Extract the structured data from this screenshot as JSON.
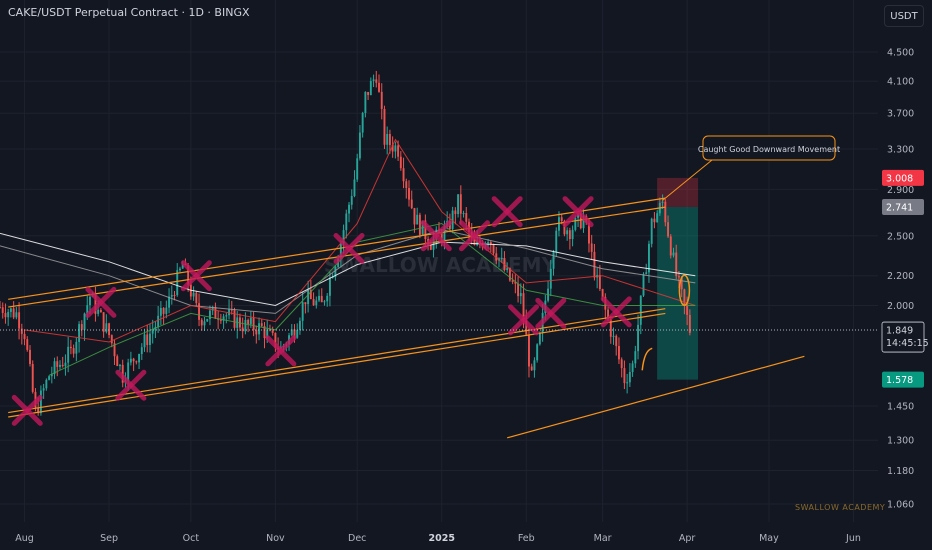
{
  "header": {
    "title": "CAKE/USDT Perpetual Contract · 1D · BINGX",
    "currency_button": "USDT"
  },
  "colors": {
    "background": "#131722",
    "up": "#26a69a",
    "down": "#ef5350",
    "channel": "#f7931a",
    "marker": "#c2185b",
    "target_zone": "#089981",
    "stop_zone": "#f23645",
    "ma_white": "#ffffff",
    "ma_grey": "#9e9e9e",
    "ma_red": "#e53935",
    "ma_green": "#43a047"
  },
  "chart_data": {
    "type": "candlestick",
    "y_scale": "log",
    "ylim": [
      1.0,
      4.9
    ],
    "y_ticks": [
      {
        "label": "4.500",
        "value": 4.5
      },
      {
        "label": "4.100",
        "value": 4.1
      },
      {
        "label": "3.700",
        "value": 3.7
      },
      {
        "label": "3.300",
        "value": 3.3
      },
      {
        "label": "2.900",
        "value": 2.9
      },
      {
        "label": "2.500",
        "value": 2.5
      },
      {
        "label": "2.200",
        "value": 2.2
      },
      {
        "label": "2.000",
        "value": 2.0
      },
      {
        "label": "1.450",
        "value": 1.45
      },
      {
        "label": "1.300",
        "value": 1.3
      },
      {
        "label": "1.180",
        "value": 1.18
      },
      {
        "label": "1.060",
        "value": 1.06
      }
    ],
    "x_range": [
      "2024-07-23",
      "2025-06-10"
    ],
    "x_ticks": [
      {
        "label": "Aug",
        "date": "2024-08-01"
      },
      {
        "label": "Sep",
        "date": "2024-09-01"
      },
      {
        "label": "Oct",
        "date": "2024-10-01"
      },
      {
        "label": "Nov",
        "date": "2024-11-01"
      },
      {
        "label": "Dec",
        "date": "2024-12-01"
      },
      {
        "label": "2025",
        "date": "2025-01-01"
      },
      {
        "label": "Feb",
        "date": "2025-02-01"
      },
      {
        "label": "Mar",
        "date": "2025-03-01"
      },
      {
        "label": "Apr",
        "date": "2025-04-01"
      },
      {
        "label": "May",
        "date": "2025-05-01"
      },
      {
        "label": "Jun",
        "date": "2025-06-01"
      }
    ],
    "close_keypoints": [
      [
        "2024-07-23",
        1.99
      ],
      [
        "2024-07-29",
        1.95
      ],
      [
        "2024-08-01",
        1.83
      ],
      [
        "2024-08-05",
        1.42
      ],
      [
        "2024-08-10",
        1.6
      ],
      [
        "2024-08-18",
        1.72
      ],
      [
        "2024-08-25",
        2.06
      ],
      [
        "2024-09-01",
        1.82
      ],
      [
        "2024-09-06",
        1.6
      ],
      [
        "2024-09-14",
        1.78
      ],
      [
        "2024-09-22",
        1.98
      ],
      [
        "2024-09-28",
        2.28
      ],
      [
        "2024-10-04",
        1.92
      ],
      [
        "2024-10-12",
        1.96
      ],
      [
        "2024-10-20",
        1.88
      ],
      [
        "2024-10-27",
        1.86
      ],
      [
        "2024-11-03",
        1.74
      ],
      [
        "2024-11-08",
        1.86
      ],
      [
        "2024-11-12",
        2.05
      ],
      [
        "2024-11-18",
        2.0
      ],
      [
        "2024-11-25",
        2.45
      ],
      [
        "2024-11-30",
        3.0
      ],
      [
        "2024-12-04",
        3.9
      ],
      [
        "2024-12-08",
        4.2
      ],
      [
        "2024-12-11",
        3.4
      ],
      [
        "2024-12-16",
        3.3
      ],
      [
        "2024-12-22",
        2.65
      ],
      [
        "2024-12-28",
        2.45
      ],
      [
        "2025-01-03",
        2.55
      ],
      [
        "2025-01-07",
        2.78
      ],
      [
        "2025-01-13",
        2.4
      ],
      [
        "2025-01-18",
        2.5
      ],
      [
        "2025-01-25",
        2.2
      ],
      [
        "2025-01-30",
        2.05
      ],
      [
        "2025-02-03",
        1.58
      ],
      [
        "2025-02-06",
        1.8
      ],
      [
        "2025-02-12",
        2.6
      ],
      [
        "2025-02-17",
        2.55
      ],
      [
        "2025-02-22",
        2.65
      ],
      [
        "2025-02-27",
        2.15
      ],
      [
        "2025-03-04",
        1.85
      ],
      [
        "2025-03-09",
        1.58
      ],
      [
        "2025-03-12",
        1.65
      ],
      [
        "2025-03-16",
        2.15
      ],
      [
        "2025-03-19",
        2.6
      ],
      [
        "2025-03-23",
        2.78
      ],
      [
        "2025-03-28",
        2.2
      ],
      [
        "2025-04-01",
        1.92
      ],
      [
        "2025-04-02",
        1.849
      ]
    ],
    "moving_averages": [
      {
        "color": "#ffffff",
        "points": [
          [
            "2024-07-23",
            2.52
          ],
          [
            "2024-09-01",
            2.3
          ],
          [
            "2024-10-01",
            2.1
          ],
          [
            "2024-11-01",
            2.0
          ],
          [
            "2024-12-01",
            2.28
          ],
          [
            "2025-01-01",
            2.45
          ],
          [
            "2025-02-01",
            2.42
          ],
          [
            "2025-03-01",
            2.3
          ],
          [
            "2025-04-04",
            2.2
          ]
        ]
      },
      {
        "color": "#9e9e9e",
        "points": [
          [
            "2024-07-23",
            2.42
          ],
          [
            "2024-09-01",
            2.2
          ],
          [
            "2024-10-01",
            2.0
          ],
          [
            "2024-11-01",
            1.95
          ],
          [
            "2024-12-01",
            2.35
          ],
          [
            "2025-01-01",
            2.55
          ],
          [
            "2025-02-01",
            2.4
          ],
          [
            "2025-03-01",
            2.25
          ],
          [
            "2025-04-04",
            2.15
          ]
        ]
      },
      {
        "color": "#e53935",
        "points": [
          [
            "2024-08-01",
            1.85
          ],
          [
            "2024-09-01",
            1.78
          ],
          [
            "2024-10-01",
            2.0
          ],
          [
            "2024-11-01",
            1.9
          ],
          [
            "2024-12-01",
            2.6
          ],
          [
            "2024-12-15",
            3.4
          ],
          [
            "2025-01-01",
            2.7
          ],
          [
            "2025-02-01",
            2.15
          ],
          [
            "2025-03-01",
            2.2
          ],
          [
            "2025-04-04",
            2.0
          ]
        ]
      },
      {
        "color": "#43a047",
        "points": [
          [
            "2024-08-10",
            1.6
          ],
          [
            "2024-09-01",
            1.75
          ],
          [
            "2024-10-01",
            1.95
          ],
          [
            "2024-11-01",
            1.85
          ],
          [
            "2024-12-01",
            2.45
          ],
          [
            "2025-01-01",
            2.6
          ],
          [
            "2025-02-01",
            2.1
          ],
          [
            "2025-03-01",
            2.0
          ],
          [
            "2025-04-04",
            2.0
          ]
        ]
      }
    ],
    "trendlines": [
      {
        "name": "channel-upper-1",
        "from": [
          "2024-07-26",
          2.04
        ],
        "to": [
          "2025-03-24",
          2.82
        ]
      },
      {
        "name": "channel-upper-2",
        "from": [
          "2024-07-26",
          1.99
        ],
        "to": [
          "2025-03-24",
          2.74
        ]
      },
      {
        "name": "channel-lower-1",
        "from": [
          "2024-07-26",
          1.42
        ],
        "to": [
          "2025-03-24",
          1.98
        ]
      },
      {
        "name": "channel-lower-2",
        "from": [
          "2024-07-26",
          1.4
        ],
        "to": [
          "2025-03-24",
          1.95
        ]
      },
      {
        "name": "support-line",
        "from": [
          "2025-01-25",
          1.31
        ],
        "to": [
          "2025-05-14",
          1.7
        ]
      }
    ],
    "markers_x": [
      [
        "2024-08-02",
        1.43
      ],
      [
        "2024-08-29",
        2.02
      ],
      [
        "2024-09-09",
        1.55
      ],
      [
        "2024-10-03",
        2.2
      ],
      [
        "2024-11-03",
        1.73
      ],
      [
        "2024-11-28",
        2.4
      ],
      [
        "2024-12-30",
        2.5
      ],
      [
        "2025-01-13",
        2.5
      ],
      [
        "2025-01-25",
        2.7
      ],
      [
        "2025-01-31",
        1.91
      ],
      [
        "2025-02-10",
        1.95
      ],
      [
        "2025-02-20",
        2.7
      ],
      [
        "2025-03-06",
        1.96
      ]
    ],
    "highlights": [
      {
        "name": "orange-ellipse-1",
        "at": [
          "2025-03-31",
          2.1
        ]
      },
      {
        "name": "orange-curve",
        "at": [
          "2025-03-17",
          1.7
        ]
      }
    ],
    "position_tool": {
      "start_date": "2025-03-21",
      "end_date": "2025-04-05",
      "entry": 2.741,
      "stop": 3.008,
      "target": 1.578
    },
    "annotations": [
      {
        "text": "Caught Good Downward Movement",
        "points_to": [
          "2025-03-23",
          2.8
        ]
      }
    ],
    "price_labels": {
      "stop": "3.008",
      "entry": "2.741",
      "current": "1.849",
      "countdown": "14:45:15",
      "target": "1.578"
    },
    "watermark": "SWALLOW ACADEMY",
    "watermark_center": "SWALLOW ACADEMY"
  }
}
